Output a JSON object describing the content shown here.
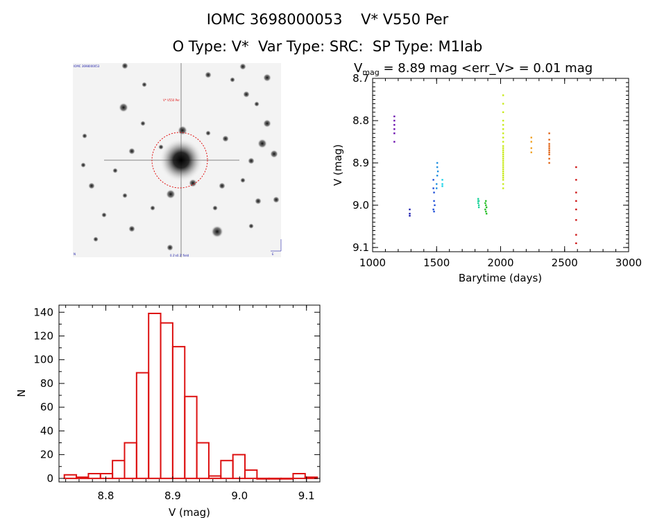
{
  "header": {
    "title_line1": "IOMC 3698000053    V* V550 Per",
    "title_line2": "O Type: V*  Var Type: SRC:  SP Type: M1Iab"
  },
  "finder_image": {
    "top_left_text": "IOMC 3698000053",
    "marker_label": "V* V550 Per",
    "bottom_left_text": "N",
    "bottom_center_text": "0.3'x0.3' field",
    "bottom_right_text": "E"
  },
  "chart_data": [
    {
      "id": "lightcurve",
      "type": "scatter",
      "title": "V_mag = 8.89 mag <err_V> = 0.01 mag",
      "title_parts": {
        "prefix": "V",
        "sub": "mag",
        "rest": " = 8.89 mag <err_V> = 0.01 mag"
      },
      "xlabel": "Barytime (days)",
      "ylabel": "V (mag)",
      "xlim": [
        1000,
        3000
      ],
      "ylim": [
        9.11,
        8.7
      ],
      "y_inverted": true,
      "xticks": [
        1000,
        1500,
        2000,
        2500,
        3000
      ],
      "yticks": [
        8.7,
        8.8,
        8.9,
        9.0,
        9.1
      ],
      "yticklabels": [
        "8.7",
        "8.8",
        "8.9",
        "9.0",
        "9.1"
      ],
      "series": [
        {
          "color": "#6a0dad",
          "x": [
            1170,
            1170,
            1170,
            1170,
            1170,
            1170
          ],
          "y": [
            8.79,
            8.8,
            8.81,
            8.82,
            8.83,
            8.85
          ]
        },
        {
          "color": "#2020b0",
          "x": [
            1290,
            1290,
            1290
          ],
          "y": [
            9.01,
            9.02,
            9.025
          ]
        },
        {
          "color": "#1f4fd8",
          "x": [
            1475,
            1475,
            1480,
            1480,
            1485,
            1475,
            1480
          ],
          "y": [
            8.94,
            8.96,
            8.97,
            8.99,
            9.0,
            9.01,
            9.015
          ]
        },
        {
          "color": "#1e8fe0",
          "x": [
            1505,
            1505,
            1505,
            1500,
            1500,
            1510
          ],
          "y": [
            8.9,
            8.91,
            8.93,
            8.95,
            8.96,
            8.92
          ]
        },
        {
          "color": "#19d3e8",
          "x": [
            1545,
            1545,
            1545
          ],
          "y": [
            8.94,
            8.95,
            8.955
          ]
        },
        {
          "color": "#19d39a",
          "x": [
            1825,
            1825,
            1830,
            1830,
            1825,
            1830
          ],
          "y": [
            8.99,
            8.995,
            9.0,
            9.005,
            8.985,
            8.99
          ]
        },
        {
          "color": "#2ac02a",
          "x": [
            1880,
            1885,
            1890,
            1880,
            1885,
            1890,
            1885
          ],
          "y": [
            8.995,
            9.0,
            9.005,
            9.01,
            9.015,
            9.02,
            8.99
          ]
        },
        {
          "color": "#c8ea1a",
          "x": [
            2020,
            2020,
            2020,
            2020,
            2020,
            2020,
            2020,
            2020,
            2020,
            2020,
            2020,
            2020,
            2020,
            2020,
            2020,
            2020,
            2020,
            2020,
            2020,
            2020,
            2020,
            2020,
            2020,
            2020,
            2020,
            2020,
            2020,
            2020
          ],
          "y": [
            8.74,
            8.76,
            8.78,
            8.8,
            8.81,
            8.82,
            8.83,
            8.84,
            8.85,
            8.86,
            8.865,
            8.87,
            8.875,
            8.88,
            8.885,
            8.89,
            8.895,
            8.9,
            8.905,
            8.91,
            8.915,
            8.92,
            8.925,
            8.93,
            8.935,
            8.94,
            8.95,
            8.96
          ]
        },
        {
          "color": "#f0a020",
          "x": [
            2240,
            2240,
            2240,
            2240
          ],
          "y": [
            8.84,
            8.85,
            8.865,
            8.875
          ]
        },
        {
          "color": "#e06010",
          "x": [
            2380,
            2380,
            2380,
            2380,
            2380,
            2380,
            2380,
            2380,
            2380,
            2380
          ],
          "y": [
            8.83,
            8.845,
            8.855,
            8.86,
            8.865,
            8.87,
            8.875,
            8.88,
            8.89,
            8.9
          ]
        },
        {
          "color": "#cc1111",
          "x": [
            2590,
            2590,
            2590,
            2590,
            2590,
            2590,
            2590,
            2590
          ],
          "y": [
            8.91,
            8.94,
            8.97,
            8.99,
            9.01,
            9.035,
            9.07,
            9.09
          ]
        }
      ]
    },
    {
      "id": "histogram",
      "type": "bar",
      "xlabel": "V (mag)",
      "ylabel": "N",
      "xlim": [
        8.73,
        9.12
      ],
      "ylim": [
        -3,
        146
      ],
      "xticks": [
        8.8,
        8.9,
        9.0,
        9.1
      ],
      "xticklabels": [
        "8.8",
        "8.9",
        "9.0",
        "9.1"
      ],
      "yticks": [
        0,
        20,
        40,
        60,
        80,
        100,
        120,
        140
      ],
      "bin_width": 0.018,
      "bin_starts": [
        8.738,
        8.756,
        8.774,
        8.792,
        8.81,
        8.828,
        8.846,
        8.864,
        8.882,
        8.9,
        8.918,
        8.936,
        8.954,
        8.972,
        8.99,
        9.008,
        9.026,
        9.044,
        9.062,
        9.08,
        9.098
      ],
      "values": [
        3,
        1,
        4,
        4,
        15,
        30,
        89,
        139,
        131,
        111,
        69,
        30,
        2,
        15,
        20,
        7,
        0,
        0,
        0,
        4,
        1
      ],
      "color": "#dd1111"
    }
  ]
}
